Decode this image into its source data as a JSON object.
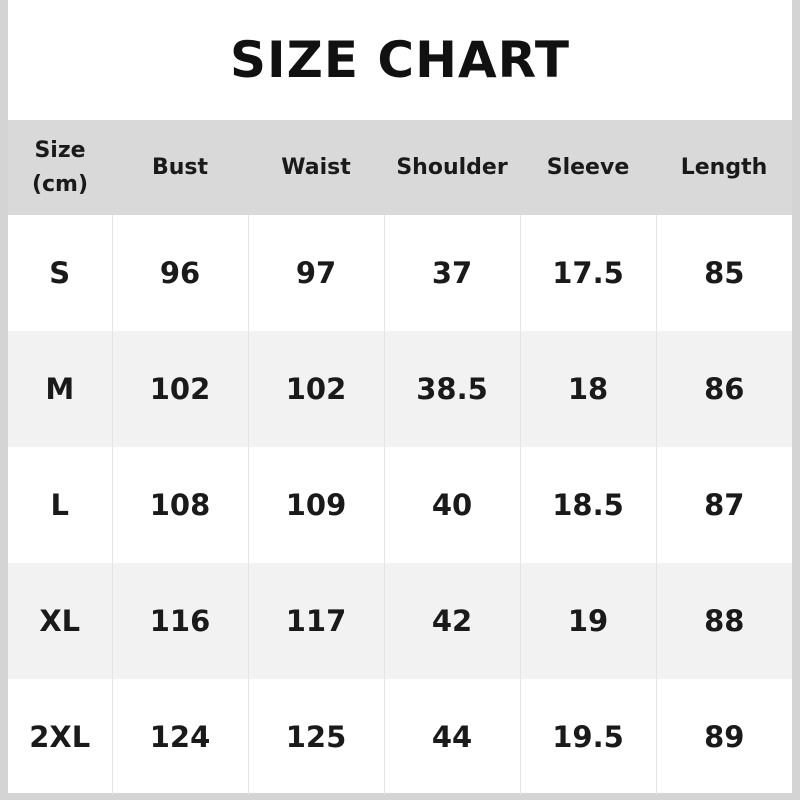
{
  "title": "SIZE CHART",
  "headers": [
    "Size\n(cm)",
    "Bust",
    "Waist",
    "Shoulder",
    "Sleeve",
    "Length"
  ],
  "header_size_line1": "Size",
  "header_size_line2": "(cm)",
  "rows": [
    [
      "S",
      "96",
      "97",
      "37",
      "17.5",
      "85"
    ],
    [
      "M",
      "102",
      "102",
      "38.5",
      "18",
      "86"
    ],
    [
      "L",
      "108",
      "109",
      "40",
      "18.5",
      "87"
    ],
    [
      "XL",
      "116",
      "117",
      "42",
      "19",
      "88"
    ],
    [
      "2XL",
      "124",
      "125",
      "44",
      "19.5",
      "89"
    ]
  ],
  "colors": {
    "header_bg": "#d9d9d9",
    "alt_row_bg": "#f2f2f2",
    "border": "#d4d4d4"
  }
}
